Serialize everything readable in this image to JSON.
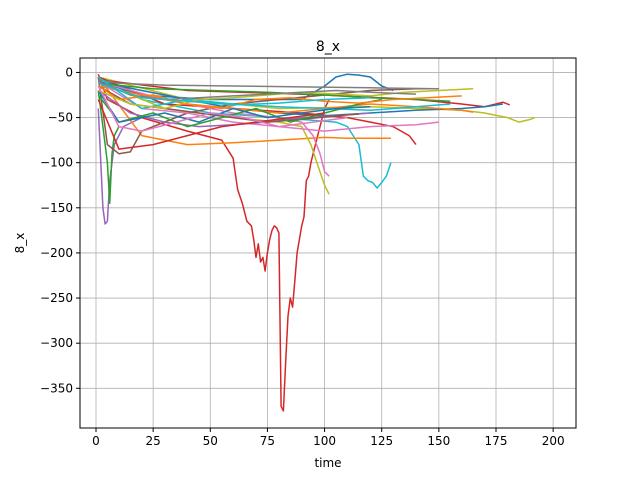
{
  "chart_data": {
    "type": "line",
    "title": "8_x",
    "xlabel": "time",
    "ylabel": "8_x",
    "xlim": [
      -7,
      210
    ],
    "ylim": [
      -394,
      16
    ],
    "xticks": [
      0,
      25,
      50,
      75,
      100,
      125,
      150,
      175,
      200
    ],
    "yticks": [
      0,
      -50,
      -100,
      -150,
      -200,
      -250,
      -300,
      -350
    ],
    "grid": true,
    "legend": "none",
    "colors": [
      "#1f77b4",
      "#ff7f0e",
      "#2ca02c",
      "#d62728",
      "#9467bd",
      "#8c564b",
      "#e377c2",
      "#7f7f7f",
      "#bcbd22",
      "#17becf"
    ],
    "series": [
      {
        "color": "#d62728",
        "x": [
          1,
          5,
          20,
          40,
          55,
          60,
          62,
          64,
          66,
          68,
          69,
          70,
          71,
          72,
          73,
          74,
          75,
          76,
          77,
          78,
          79,
          80,
          81,
          82,
          83,
          84,
          85,
          86,
          87,
          88,
          89,
          90,
          91,
          92,
          93,
          94,
          95,
          96,
          97,
          98,
          99,
          100,
          101,
          102
        ],
        "y": [
          -2,
          -30,
          -50,
          -65,
          -75,
          -95,
          -130,
          -145,
          -165,
          -170,
          -185,
          -205,
          -190,
          -210,
          -205,
          -220,
          -200,
          -185,
          -175,
          -170,
          -172,
          -178,
          -370,
          -375,
          -320,
          -270,
          -250,
          -260,
          -230,
          -200,
          -185,
          -170,
          -160,
          -120,
          -115,
          -100,
          -90,
          -80,
          -70,
          -60,
          -50,
          -40,
          -35,
          -30
        ]
      },
      {
        "color": "#17becf",
        "x": [
          1,
          20,
          50,
          80,
          105,
          110,
          115,
          117,
          119,
          121,
          123,
          125,
          127,
          129
        ],
        "y": [
          -5,
          -30,
          -45,
          -50,
          -55,
          -60,
          -80,
          -115,
          -120,
          -122,
          -128,
          -122,
          -115,
          -100
        ]
      },
      {
        "color": "#1f77b4",
        "x": [
          1,
          20,
          50,
          90,
          100,
          105,
          110,
          115,
          120,
          125,
          130
        ],
        "y": [
          -10,
          -25,
          -30,
          -30,
          -15,
          -5,
          -2,
          -3,
          -5,
          -15,
          -20
        ]
      },
      {
        "color": "#bcbd22",
        "x": [
          1,
          40,
          80,
          120,
          160,
          170,
          180,
          185,
          190,
          192
        ],
        "y": [
          -5,
          -30,
          -40,
          -38,
          -42,
          -45,
          -50,
          -55,
          -52,
          -50
        ]
      },
      {
        "color": "#d62728",
        "x": [
          1,
          40,
          100,
          140,
          160,
          170,
          175,
          178,
          181
        ],
        "y": [
          -8,
          -20,
          -25,
          -30,
          -35,
          -38,
          -35,
          -33,
          -36
        ]
      },
      {
        "color": "#9467bd",
        "x": [
          1,
          3,
          4,
          5,
          6,
          8,
          12,
          20
        ],
        "y": [
          -40,
          -150,
          -168,
          -165,
          -120,
          -80,
          -60,
          -50
        ]
      },
      {
        "color": "#2ca02c",
        "x": [
          1,
          3,
          5,
          6,
          7,
          8,
          10
        ],
        "y": [
          -20,
          -60,
          -100,
          -145,
          -90,
          -70,
          -60
        ]
      },
      {
        "color": "#ff7f0e",
        "x": [
          1,
          20,
          40,
          60,
          80,
          100,
          110,
          120,
          129
        ],
        "y": [
          -5,
          -70,
          -80,
          -78,
          -75,
          -72,
          -73,
          -73,
          -73
        ]
      },
      {
        "color": "#d62728",
        "x": [
          1,
          30,
          60,
          90,
          110,
          120,
          130,
          137,
          140
        ],
        "y": [
          -5,
          -35,
          -40,
          -45,
          -50,
          -55,
          -60,
          -70,
          -80
        ]
      },
      {
        "color": "#8c564b",
        "x": [
          1,
          5,
          10,
          15,
          20,
          40,
          60,
          80,
          100,
          120,
          140,
          150
        ],
        "y": [
          -5,
          -80,
          -90,
          -88,
          -65,
          -45,
          -35,
          -30,
          -25,
          -20,
          -18,
          -18
        ]
      },
      {
        "color": "#bcbd22",
        "x": [
          1,
          30,
          60,
          80,
          90,
          94,
          96,
          98,
          100,
          102
        ],
        "y": [
          -10,
          -40,
          -50,
          -55,
          -60,
          -80,
          -95,
          -110,
          -125,
          -135
        ]
      },
      {
        "color": "#e377c2",
        "x": [
          1,
          30,
          60,
          80,
          90,
          95,
          98,
          100,
          102
        ],
        "y": [
          -10,
          -30,
          -45,
          -50,
          -55,
          -70,
          -90,
          -110,
          -115
        ]
      },
      {
        "color": "#7f7f7f",
        "x": [
          1,
          10,
          30,
          60,
          90,
          120,
          150
        ],
        "y": [
          -8,
          -12,
          -14,
          -15,
          -16,
          -17,
          -18
        ]
      },
      {
        "color": "#1f77b4",
        "x": [
          1,
          20,
          40,
          60,
          80,
          100,
          120,
          140,
          160,
          170,
          178
        ],
        "y": [
          -10,
          -20,
          -30,
          -40,
          -45,
          -48,
          -45,
          -42,
          -40,
          -38,
          -35
        ]
      },
      {
        "color": "#2ca02c",
        "x": [
          1,
          25,
          50,
          75,
          100,
          120,
          140,
          155
        ],
        "y": [
          -12,
          -18,
          -20,
          -22,
          -25,
          -28,
          -30,
          -32
        ]
      },
      {
        "color": "#ff7f0e",
        "x": [
          1,
          20,
          40,
          60,
          80,
          100,
          120,
          140,
          160,
          165
        ],
        "y": [
          -15,
          -25,
          -35,
          -40,
          -45,
          -40,
          -35,
          -38,
          -42,
          -44
        ]
      },
      {
        "color": "#e377c2",
        "x": [
          1,
          20,
          40,
          60,
          80,
          100,
          120,
          140,
          150
        ],
        "y": [
          -10,
          -40,
          -45,
          -55,
          -60,
          -65,
          -60,
          -58,
          -55
        ]
      },
      {
        "color": "#17becf",
        "x": [
          1,
          20,
          40,
          60,
          80,
          100,
          120,
          140,
          155
        ],
        "y": [
          -5,
          -40,
          -30,
          -35,
          -38,
          -40,
          -42,
          -38,
          -35
        ]
      },
      {
        "color": "#9467bd",
        "x": [
          1,
          15,
          30,
          45,
          60,
          75,
          90,
          105,
          120
        ],
        "y": [
          -20,
          -45,
          -55,
          -60,
          -58,
          -55,
          -50,
          -48,
          -45
        ]
      },
      {
        "color": "#8c564b",
        "x": [
          1,
          15,
          30,
          45,
          60,
          75,
          90,
          105,
          115
        ],
        "y": [
          -15,
          -35,
          -40,
          -45,
          -50,
          -55,
          -52,
          -48,
          -46
        ]
      },
      {
        "color": "#2ca02c",
        "x": [
          1,
          10,
          25,
          40,
          55,
          70,
          85,
          100,
          115,
          125
        ],
        "y": [
          -25,
          -55,
          -45,
          -60,
          -50,
          -40,
          -55,
          -45,
          -35,
          -30
        ]
      },
      {
        "color": "#d62728",
        "x": [
          1,
          10,
          25,
          40,
          55,
          70,
          85,
          100
        ],
        "y": [
          -30,
          -85,
          -80,
          -70,
          -60,
          -55,
          -50,
          -45
        ]
      },
      {
        "color": "#1f77b4",
        "x": [
          1,
          10,
          20,
          30,
          45,
          60,
          75,
          90,
          105,
          120
        ],
        "y": [
          -20,
          -55,
          -50,
          -45,
          -55,
          -40,
          -50,
          -45,
          -40,
          -38
        ]
      },
      {
        "color": "#ff7f0e",
        "x": [
          1,
          10,
          25,
          40,
          55,
          70,
          85,
          100,
          115,
          130,
          145,
          160
        ],
        "y": [
          -15,
          -30,
          -25,
          -35,
          -40,
          -30,
          -28,
          -32,
          -34,
          -30,
          -28,
          -26
        ]
      },
      {
        "color": "#bcbd22",
        "x": [
          1,
          15,
          30,
          45,
          60,
          75,
          90,
          105,
          120,
          135,
          150,
          165
        ],
        "y": [
          -20,
          -35,
          -40,
          -30,
          -28,
          -25,
          -22,
          -24,
          -26,
          -22,
          -20,
          -18
        ]
      },
      {
        "color": "#7f7f7f",
        "x": [
          1,
          15,
          30,
          45,
          60,
          75,
          90,
          105,
          120,
          140
        ],
        "y": [
          -10,
          -25,
          -30,
          -28,
          -26,
          -24,
          -22,
          -20,
          -22,
          -24
        ]
      },
      {
        "color": "#e377c2",
        "x": [
          1,
          10,
          20,
          35,
          50,
          65,
          80,
          95,
          110
        ],
        "y": [
          -15,
          -60,
          -65,
          -55,
          -45,
          -50,
          -60,
          -55,
          -50
        ]
      },
      {
        "color": "#17becf",
        "x": [
          1,
          20,
          40,
          60,
          80,
          100,
          120
        ],
        "y": [
          -12,
          -28,
          -32,
          -36,
          -34,
          -30,
          -28
        ]
      }
    ]
  }
}
